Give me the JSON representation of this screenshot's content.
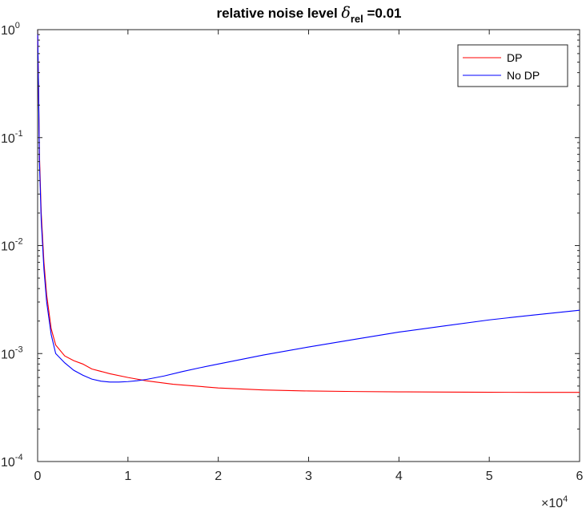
{
  "chart_data": {
    "type": "line",
    "title": {
      "prefix": "relative noise level ",
      "symbol": "δ",
      "subscript": "rel",
      "suffix": " =0.01"
    },
    "xlim": [
      0,
      60000
    ],
    "ylim": [
      0.0001,
      1
    ],
    "yscale": "log",
    "x_ticks": [
      0,
      1,
      2,
      3,
      4,
      5,
      6
    ],
    "x_tick_labels": [
      "0",
      "1",
      "2",
      "3",
      "4",
      "5",
      "6"
    ],
    "x_multiplier": {
      "base": "×10",
      "exponent": "4"
    },
    "y_ticks": [
      0.0001,
      0.001,
      0.01,
      0.1,
      1
    ],
    "y_tick_labels": [
      {
        "base": "10",
        "exponent": "-4"
      },
      {
        "base": "10",
        "exponent": "-3"
      },
      {
        "base": "10",
        "exponent": "-2"
      },
      {
        "base": "10",
        "exponent": "-1"
      },
      {
        "base": "10",
        "exponent": "0"
      }
    ],
    "grid": false,
    "legend_position": "top-right",
    "series": [
      {
        "name": "DP",
        "color": "#ff0000",
        "points": [
          [
            0,
            1.0
          ],
          [
            100,
            0.3
          ],
          [
            200,
            0.07
          ],
          [
            400,
            0.02
          ],
          [
            700,
            0.007
          ],
          [
            1000,
            0.0035
          ],
          [
            1500,
            0.0017
          ],
          [
            2000,
            0.0012
          ],
          [
            3000,
            0.00095
          ],
          [
            4000,
            0.00086
          ],
          [
            5000,
            0.0008
          ],
          [
            6000,
            0.00072
          ],
          [
            8000,
            0.00065
          ],
          [
            10000,
            0.0006
          ],
          [
            12000,
            0.00056
          ],
          [
            15000,
            0.00052
          ],
          [
            20000,
            0.00048
          ],
          [
            25000,
            0.00046
          ],
          [
            30000,
            0.00045
          ],
          [
            35000,
            0.000445
          ],
          [
            40000,
            0.000442
          ],
          [
            45000,
            0.00044
          ],
          [
            50000,
            0.000438
          ],
          [
            55000,
            0.000437
          ],
          [
            60000,
            0.000437
          ]
        ]
      },
      {
        "name": "No DP",
        "color": "#0000ff",
        "points": [
          [
            0,
            1.0
          ],
          [
            100,
            0.3
          ],
          [
            200,
            0.06
          ],
          [
            400,
            0.017
          ],
          [
            700,
            0.006
          ],
          [
            1000,
            0.003
          ],
          [
            1500,
            0.0015
          ],
          [
            2000,
            0.001
          ],
          [
            3000,
            0.00082
          ],
          [
            4000,
            0.0007
          ],
          [
            5000,
            0.00063
          ],
          [
            6000,
            0.00058
          ],
          [
            7000,
            0.000555
          ],
          [
            8000,
            0.000545
          ],
          [
            9000,
            0.000545
          ],
          [
            10000,
            0.00055
          ],
          [
            11000,
            0.00056
          ],
          [
            12000,
            0.000575
          ],
          [
            14000,
            0.00062
          ],
          [
            16000,
            0.00068
          ],
          [
            18000,
            0.00074
          ],
          [
            20000,
            0.0008
          ],
          [
            25000,
            0.00097
          ],
          [
            30000,
            0.00115
          ],
          [
            35000,
            0.00135
          ],
          [
            40000,
            0.00158
          ],
          [
            45000,
            0.0018
          ],
          [
            50000,
            0.00205
          ],
          [
            55000,
            0.00228
          ],
          [
            60000,
            0.00252
          ]
        ]
      }
    ]
  }
}
